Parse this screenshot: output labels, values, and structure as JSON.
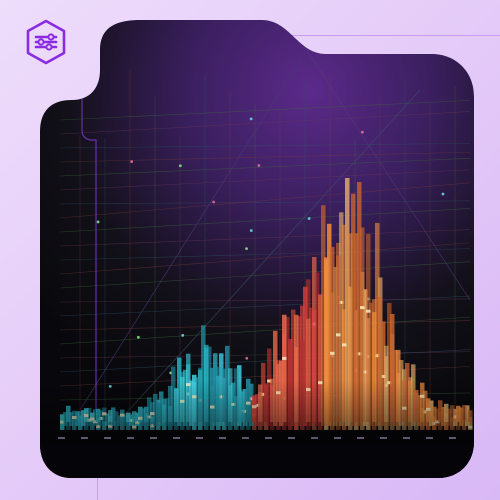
{
  "colors": {
    "background": "#e6cdf8",
    "accent": "#8a2be2",
    "frame_dark": "#0b0b12",
    "purple_glow": "#5b2a8a",
    "teal": "#2ab7c9",
    "red": "#d8433a",
    "orange": "#f08a3a",
    "gold": "#e8b36a"
  },
  "logo": {
    "icon": "sliders-hexagon-icon"
  },
  "artwork": {
    "description_icon": "data-visualization-illustration"
  }
}
